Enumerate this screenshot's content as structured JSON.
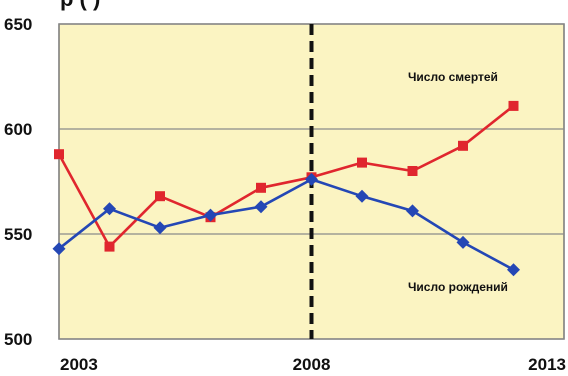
{
  "chart_data": {
    "type": "line",
    "title": "",
    "xlabel": "",
    "ylabel": "",
    "xlim": [
      2003,
      2013
    ],
    "ylim": [
      500,
      650
    ],
    "x_ticks": [
      "2003",
      "2008",
      "2013"
    ],
    "y_ticks": [
      "650",
      "600",
      "550",
      "500"
    ],
    "grid": "horizontal",
    "vertical_marker": {
      "x": 2008,
      "style": "dashed"
    },
    "series": [
      {
        "name": "Число смертей",
        "color": "#e0262e",
        "marker": "square",
        "points": [
          {
            "x": 2003,
            "y": 588
          },
          {
            "x": 2004,
            "y": 544
          },
          {
            "x": 2005,
            "y": 568
          },
          {
            "x": 2006,
            "y": 558
          },
          {
            "x": 2007,
            "y": 572
          },
          {
            "x": 2008,
            "y": 577
          },
          {
            "x": 2009,
            "y": 584
          },
          {
            "x": 2010,
            "y": 580
          },
          {
            "x": 2011,
            "y": 592
          },
          {
            "x": 2012,
            "y": 611
          }
        ]
      },
      {
        "name": "Число рождений",
        "color": "#2447b5",
        "marker": "diamond",
        "points": [
          {
            "x": 2003,
            "y": 543
          },
          {
            "x": 2004,
            "y": 562
          },
          {
            "x": 2005,
            "y": 553
          },
          {
            "x": 2006,
            "y": 559
          },
          {
            "x": 2007,
            "y": 563
          },
          {
            "x": 2008,
            "y": 576
          },
          {
            "x": 2009,
            "y": 568
          },
          {
            "x": 2010,
            "y": 561
          },
          {
            "x": 2011,
            "y": 546
          },
          {
            "x": 2012,
            "y": 533
          }
        ]
      }
    ],
    "annotations": [
      "Число смертей",
      "Число рождений"
    ]
  },
  "colors": {
    "plot_background": "#fbf4c2",
    "grid": "#8a8a8a",
    "border": "#777777",
    "marker_line": "#111111"
  }
}
